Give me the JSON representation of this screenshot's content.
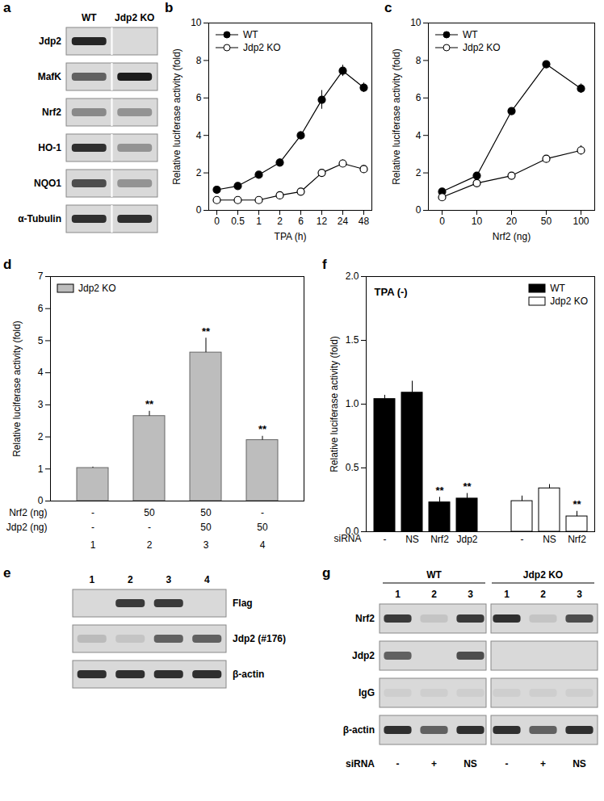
{
  "chart_data": [
    {
      "panel": "b",
      "type": "line",
      "x_label": "TPA (h)",
      "y_label": "Relative luciferase activity (fold)",
      "categories": [
        "0",
        "0.5",
        "1",
        "2",
        "6",
        "12",
        "24",
        "48"
      ],
      "ylim": [
        0,
        10
      ],
      "yticks": [
        0,
        2,
        4,
        6,
        8,
        10
      ],
      "legend": "top-left",
      "series": [
        {
          "name": "WT",
          "color": "#000000",
          "marker": "filled",
          "values": [
            1.1,
            1.3,
            1.9,
            2.55,
            4.0,
            5.9,
            7.45,
            6.55
          ],
          "errors": [
            0.1,
            0.05,
            0.1,
            0.2,
            0.2,
            0.5,
            0.3,
            0.25
          ]
        },
        {
          "name": "Jdp2 KO",
          "color": "#000000",
          "marker": "open",
          "values": [
            0.55,
            0.55,
            0.55,
            0.8,
            1.0,
            2.0,
            2.5,
            2.2
          ],
          "errors": [
            0.05,
            0.05,
            0.05,
            0.1,
            0.1,
            0.15,
            0.2,
            0.2
          ]
        }
      ]
    },
    {
      "panel": "c",
      "type": "line",
      "x_label": "Nrf2 (ng)",
      "y_label": "Relative luciferase activity (fold)",
      "categories": [
        "0",
        "10",
        "20",
        "50",
        "100"
      ],
      "ylim": [
        0,
        10
      ],
      "yticks": [
        0,
        2,
        4,
        6,
        8,
        10
      ],
      "legend": "top-left",
      "series": [
        {
          "name": "WT",
          "color": "#000000",
          "marker": "filled",
          "values": [
            1.0,
            1.85,
            5.3,
            7.8,
            6.5
          ],
          "errors": [
            0.05,
            0.05,
            0.1,
            0.1,
            0.25
          ]
        },
        {
          "name": "Jdp2 KO",
          "color": "#000000",
          "marker": "open",
          "values": [
            0.7,
            1.45,
            1.85,
            2.75,
            3.2
          ],
          "errors": [
            0.05,
            0.05,
            0.05,
            0.15,
            0.25
          ]
        }
      ]
    },
    {
      "panel": "d",
      "type": "bar",
      "y_label": "Relative luciferase activity (fold)",
      "categories": [
        "1",
        "2",
        "3",
        "4"
      ],
      "ylim": [
        0,
        7
      ],
      "yticks": [
        0,
        1,
        2,
        3,
        4,
        5,
        6,
        7
      ],
      "legend": "top-left",
      "series": [
        {
          "name": "Jdp2 KO",
          "color": "#bdbdbd",
          "values": [
            1.03,
            2.65,
            4.63,
            1.9
          ],
          "errors": [
            0.03,
            0.15,
            0.45,
            0.12
          ],
          "significance": [
            null,
            "**",
            "**",
            "**"
          ]
        }
      ],
      "conditions": [
        {
          "name": "Nrf2 (ng)",
          "values": [
            "-",
            "50",
            "50",
            "-"
          ]
        },
        {
          "name": "Jdp2 (ng)",
          "values": [
            "-",
            "-",
            "50",
            "50"
          ]
        }
      ]
    },
    {
      "panel": "f",
      "type": "bar",
      "annotation": "TPA (-)",
      "x_label": "siRNA",
      "y_label": "Relative luciferase activity (fold)",
      "ylim": [
        0,
        2
      ],
      "yticks": [
        {
          "value": 0,
          "label": "0.0"
        },
        {
          "value": 0.5,
          "label": "0.5"
        },
        {
          "value": 1,
          "label": "1.0"
        },
        {
          "value": 1.5,
          "label": "1.5"
        },
        {
          "value": 2,
          "label": "2.0"
        }
      ],
      "legend": "top-right",
      "series": [
        {
          "name": "WT",
          "color": "#000000",
          "categories": [
            "-",
            "NS",
            "Nrf2",
            "Jdp2"
          ],
          "values": [
            1.04,
            1.09,
            0.23,
            0.26
          ],
          "errors": [
            0.03,
            0.09,
            0.04,
            0.04
          ],
          "significance": [
            null,
            null,
            "**",
            "**"
          ]
        },
        {
          "name": "Jdp2 KO",
          "color": "#ffffff",
          "categories": [
            "-",
            "NS",
            "Nrf2"
          ],
          "values": [
            0.24,
            0.34,
            0.12
          ],
          "errors": [
            0.04,
            0.03,
            0.04
          ],
          "significance": [
            null,
            null,
            "**"
          ]
        }
      ]
    }
  ],
  "blots": [
    {
      "panel": "a",
      "columns": [
        "WT",
        "Jdp2 KO"
      ],
      "rows": [
        {
          "label": "Jdp2",
          "bands": [
            0.9,
            0
          ]
        },
        {
          "label": "MafK",
          "bands": [
            0.6,
            0.95
          ]
        },
        {
          "label": "Nrf2",
          "bands": [
            0.4,
            0.35
          ]
        },
        {
          "label": "HO-1",
          "bands": [
            0.85,
            0.35
          ]
        },
        {
          "label": "NQO1",
          "bands": [
            0.7,
            0.35
          ]
        },
        {
          "label": "α-Tubulin",
          "bands": [
            0.85,
            0.85
          ]
        }
      ]
    },
    {
      "panel": "e",
      "lanes": [
        "1",
        "2",
        "3",
        "4"
      ],
      "rows": [
        {
          "label": "Flag",
          "bands": [
            0,
            0.8,
            0.8,
            0
          ]
        },
        {
          "label": "Jdp2 (#176)",
          "bands": [
            0.15,
            0.1,
            0.6,
            0.6
          ]
        },
        {
          "label": "β-actin",
          "bands": [
            0.85,
            0.85,
            0.85,
            0.85
          ]
        }
      ]
    },
    {
      "panel": "g",
      "footer_label": "siRNA",
      "lane_groups": [
        {
          "label": "WT",
          "lanes": [
            "1",
            "2",
            "3"
          ],
          "sirna": [
            "-",
            "+",
            "NS"
          ]
        },
        {
          "label": "Jdp2 KO",
          "lanes": [
            "1",
            "2",
            "3"
          ],
          "sirna": [
            "-",
            "+",
            "NS"
          ]
        }
      ],
      "rows": [
        {
          "label": "Nrf2",
          "bands": [
            0.8,
            0.1,
            0.8,
            0.85,
            0.1,
            0.7
          ]
        },
        {
          "label": "Jdp2",
          "bands": [
            0.6,
            0,
            0.7,
            0,
            0,
            0
          ]
        },
        {
          "label": "IgG",
          "bands": [
            0.05,
            0.05,
            0.05,
            0.05,
            0.05,
            0.05
          ]
        },
        {
          "label": "β-actin",
          "bands": [
            0.85,
            0.6,
            0.85,
            0.85,
            0.6,
            0.85
          ]
        }
      ]
    }
  ]
}
